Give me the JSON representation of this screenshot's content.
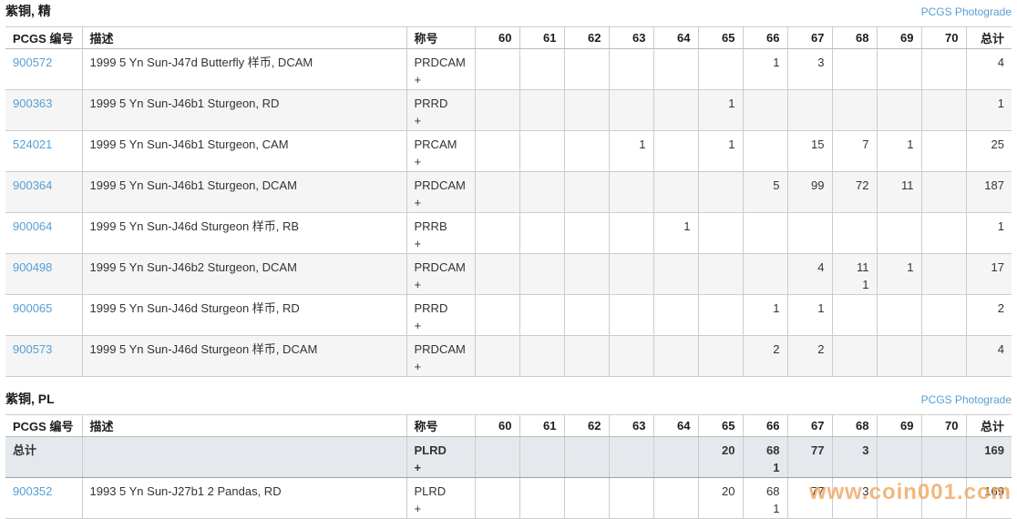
{
  "appearance": {
    "link_color": "#559fd4",
    "watermark_color": "#f2a45e",
    "total_row_bg": "#e5e9ed",
    "stripe_bg": "#f5f5f5",
    "border_color": "#cccccc"
  },
  "links": {
    "photograde": "PCGS Photograde"
  },
  "watermark": "www.coin001.com",
  "table_columns": {
    "pcgs_number": "PCGS 编号",
    "description": "描述",
    "designation": "称号",
    "grades": [
      "60",
      "61",
      "62",
      "63",
      "64",
      "65",
      "66",
      "67",
      "68",
      "69",
      "70"
    ],
    "total": "总计"
  },
  "sections": [
    {
      "title": "紫铜, 精",
      "rows": [
        {
          "pcgs_number": "900572",
          "description": "1999 5 Yn Sun-J47d Butterfly 样币, DCAM",
          "designation": [
            "PRDCAM",
            "+"
          ],
          "grades": [
            [
              "",
              ""
            ],
            [
              "",
              ""
            ],
            [
              "",
              ""
            ],
            [
              "",
              ""
            ],
            [
              "",
              ""
            ],
            [
              "",
              ""
            ],
            [
              "1",
              ""
            ],
            [
              "3",
              ""
            ],
            [
              "",
              ""
            ],
            [
              "",
              ""
            ],
            [
              "",
              ""
            ]
          ],
          "total": "4",
          "is_total_row": false
        },
        {
          "pcgs_number": "900363",
          "description": "1999 5 Yn Sun-J46b1 Sturgeon, RD",
          "designation": [
            "PRRD",
            "+"
          ],
          "grades": [
            [
              "",
              ""
            ],
            [
              "",
              ""
            ],
            [
              "",
              ""
            ],
            [
              "",
              ""
            ],
            [
              "",
              ""
            ],
            [
              "1",
              ""
            ],
            [
              "",
              ""
            ],
            [
              "",
              ""
            ],
            [
              "",
              ""
            ],
            [
              "",
              ""
            ],
            [
              "",
              ""
            ]
          ],
          "total": "1",
          "is_total_row": false
        },
        {
          "pcgs_number": "524021",
          "description": "1999 5 Yn Sun-J46b1 Sturgeon, CAM",
          "designation": [
            "PRCAM",
            "+"
          ],
          "grades": [
            [
              "",
              ""
            ],
            [
              "",
              ""
            ],
            [
              "",
              ""
            ],
            [
              "1",
              ""
            ],
            [
              "",
              ""
            ],
            [
              "1",
              ""
            ],
            [
              "",
              ""
            ],
            [
              "15",
              ""
            ],
            [
              "7",
              ""
            ],
            [
              "1",
              ""
            ],
            [
              "",
              ""
            ]
          ],
          "total": "25",
          "is_total_row": false
        },
        {
          "pcgs_number": "900364",
          "description": "1999 5 Yn Sun-J46b1 Sturgeon, DCAM",
          "designation": [
            "PRDCAM",
            "+"
          ],
          "grades": [
            [
              "",
              ""
            ],
            [
              "",
              ""
            ],
            [
              "",
              ""
            ],
            [
              "",
              ""
            ],
            [
              "",
              ""
            ],
            [
              "",
              ""
            ],
            [
              "5",
              ""
            ],
            [
              "99",
              ""
            ],
            [
              "72",
              ""
            ],
            [
              "11",
              ""
            ],
            [
              "",
              ""
            ]
          ],
          "total": "187",
          "is_total_row": false
        },
        {
          "pcgs_number": "900064",
          "description": "1999 5 Yn Sun-J46d Sturgeon 样币, RB",
          "designation": [
            "PRRB",
            "+"
          ],
          "grades": [
            [
              "",
              ""
            ],
            [
              "",
              ""
            ],
            [
              "",
              ""
            ],
            [
              "",
              ""
            ],
            [
              "1",
              ""
            ],
            [
              "",
              ""
            ],
            [
              "",
              ""
            ],
            [
              "",
              ""
            ],
            [
              "",
              ""
            ],
            [
              "",
              ""
            ],
            [
              "",
              ""
            ]
          ],
          "total": "1",
          "is_total_row": false
        },
        {
          "pcgs_number": "900498",
          "description": "1999 5 Yn Sun-J46b2 Sturgeon, DCAM",
          "designation": [
            "PRDCAM",
            "+"
          ],
          "grades": [
            [
              "",
              ""
            ],
            [
              "",
              ""
            ],
            [
              "",
              ""
            ],
            [
              "",
              ""
            ],
            [
              "",
              ""
            ],
            [
              "",
              ""
            ],
            [
              "",
              ""
            ],
            [
              "4",
              ""
            ],
            [
              "11",
              "1"
            ],
            [
              "1",
              ""
            ],
            [
              "",
              ""
            ]
          ],
          "total": "17",
          "is_total_row": false
        },
        {
          "pcgs_number": "900065",
          "description": "1999 5 Yn Sun-J46d Sturgeon 样币, RD",
          "designation": [
            "PRRD",
            "+"
          ],
          "grades": [
            [
              "",
              ""
            ],
            [
              "",
              ""
            ],
            [
              "",
              ""
            ],
            [
              "",
              ""
            ],
            [
              "",
              ""
            ],
            [
              "",
              ""
            ],
            [
              "1",
              ""
            ],
            [
              "1",
              ""
            ],
            [
              "",
              ""
            ],
            [
              "",
              ""
            ],
            [
              "",
              ""
            ]
          ],
          "total": "2",
          "is_total_row": false
        },
        {
          "pcgs_number": "900573",
          "description": "1999 5 Yn Sun-J46d Sturgeon 样币, DCAM",
          "designation": [
            "PRDCAM",
            "+"
          ],
          "grades": [
            [
              "",
              ""
            ],
            [
              "",
              ""
            ],
            [
              "",
              ""
            ],
            [
              "",
              ""
            ],
            [
              "",
              ""
            ],
            [
              "",
              ""
            ],
            [
              "2",
              ""
            ],
            [
              "2",
              ""
            ],
            [
              "",
              ""
            ],
            [
              "",
              ""
            ],
            [
              "",
              ""
            ]
          ],
          "total": "4",
          "is_total_row": false
        }
      ]
    },
    {
      "title": "紫铜, PL",
      "rows": [
        {
          "pcgs_number": "总计",
          "description": "",
          "designation": [
            "PLRD",
            "+"
          ],
          "grades": [
            [
              "",
              ""
            ],
            [
              "",
              ""
            ],
            [
              "",
              ""
            ],
            [
              "",
              ""
            ],
            [
              "",
              ""
            ],
            [
              "20",
              ""
            ],
            [
              "68",
              "1"
            ],
            [
              "77",
              ""
            ],
            [
              "3",
              ""
            ],
            [
              "",
              ""
            ],
            [
              "",
              ""
            ]
          ],
          "total": "169",
          "is_total_row": true
        },
        {
          "pcgs_number": "900352",
          "description": "1993 5 Yn Sun-J27b1 2 Pandas, RD",
          "designation": [
            "PLRD",
            "+"
          ],
          "grades": [
            [
              "",
              ""
            ],
            [
              "",
              ""
            ],
            [
              "",
              ""
            ],
            [
              "",
              ""
            ],
            [
              "",
              ""
            ],
            [
              "20",
              ""
            ],
            [
              "68",
              "1"
            ],
            [
              "77",
              ""
            ],
            [
              "3",
              ""
            ],
            [
              "",
              ""
            ],
            [
              "",
              ""
            ]
          ],
          "total": "169",
          "is_total_row": false
        }
      ]
    }
  ]
}
